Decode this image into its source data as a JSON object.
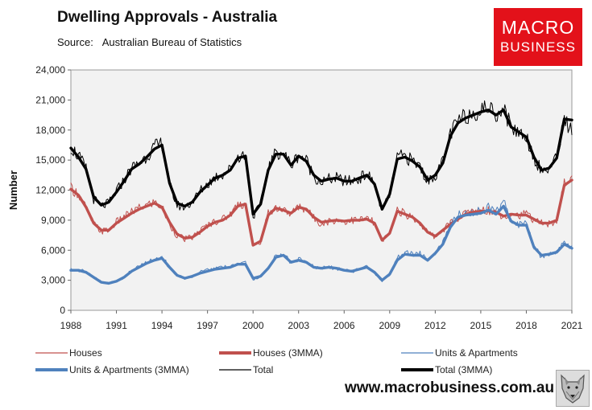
{
  "header": {
    "title": "Dwelling Approvals - Australia",
    "source_label": "Source:",
    "source_value": "Australian Bureau of Statistics"
  },
  "logo": {
    "line1": "MACRO",
    "line2": "BUSINESS"
  },
  "footer": {
    "website": "www.macrobusiness.com.au"
  },
  "icons": {
    "wolf": "wolf-head-icon"
  },
  "colors": {
    "houses": "#c0504d",
    "units": "#4f81bd",
    "total": "#000000",
    "plot_bg": "#f2f2f2",
    "logo_bg": "#e3111a"
  },
  "chart_data": {
    "type": "line",
    "title": "Dwelling Approvals - Australia",
    "xlabel": "",
    "ylabel": "Number",
    "xlim": [
      1988,
      2021
    ],
    "ylim": [
      0,
      24000
    ],
    "grid": false,
    "legend_position": "bottom",
    "x_ticks": [
      "1988",
      "1991",
      "1994",
      "1997",
      "2000",
      "2003",
      "2006",
      "2009",
      "2012",
      "2015",
      "2018",
      "2021"
    ],
    "y_ticks": [
      "0",
      "3,000",
      "6,000",
      "9,000",
      "12,000",
      "15,000",
      "18,000",
      "21,000",
      "24,000"
    ],
    "legend": [
      {
        "label": "Houses",
        "series": "Houses"
      },
      {
        "label": "Houses (3MMA)",
        "series": "Houses (3MMA)"
      },
      {
        "label": "Units & Apartments",
        "series": "Units & Apartments"
      },
      {
        "label": "Units & Apartments (3MMA)",
        "series": "Units & Apartments (3MMA)"
      },
      {
        "label": "Total",
        "series": "Total"
      },
      {
        "label": "Total (3MMA)",
        "series": "Total (3MMA)"
      }
    ],
    "x": [
      1988,
      1988.5,
      1989,
      1989.5,
      1990,
      1990.5,
      1991,
      1991.5,
      1992,
      1992.5,
      1993,
      1993.5,
      1994,
      1994.5,
      1995,
      1995.5,
      1996,
      1996.5,
      1997,
      1997.5,
      1998,
      1998.5,
      1999,
      1999.5,
      2000,
      2000.5,
      2001,
      2001.5,
      2002,
      2002.5,
      2003,
      2003.5,
      2004,
      2004.5,
      2005,
      2005.5,
      2006,
      2006.5,
      2007,
      2007.5,
      2008,
      2008.5,
      2009,
      2009.5,
      2010,
      2010.5,
      2011,
      2011.5,
      2012,
      2012.5,
      2013,
      2013.5,
      2014,
      2014.5,
      2015,
      2015.5,
      2016,
      2016.5,
      2017,
      2017.5,
      2018,
      2018.5,
      2019,
      2019.5,
      2020,
      2020.5,
      2021
    ],
    "series": [
      {
        "name": "Houses",
        "style": "thin",
        "color": "#c0504d",
        "values": [
          12200,
          11600,
          10200,
          8600,
          7900,
          8000,
          8800,
          9300,
          9800,
          10200,
          10500,
          10800,
          10300,
          8600,
          7500,
          7100,
          7300,
          7900,
          8500,
          8900,
          9100,
          9600,
          10600,
          10600,
          6300,
          6900,
          9700,
          10300,
          10000,
          9600,
          10400,
          10100,
          9200,
          8700,
          8900,
          9000,
          8900,
          9000,
          9000,
          9200,
          8700,
          6900,
          7700,
          10000,
          9600,
          9300,
          8700,
          7800,
          7300,
          8000,
          8700,
          9200,
          9700,
          9900,
          10000,
          10000,
          9800,
          9400,
          9700,
          9500,
          9600,
          9100,
          8700,
          8600,
          9000,
          12700,
          13100
        ]
      },
      {
        "name": "Houses (3MMA)",
        "style": "thick",
        "color": "#c0504d",
        "values": [
          12100,
          11500,
          10300,
          8700,
          8000,
          8000,
          8700,
          9200,
          9700,
          10100,
          10400,
          10700,
          10300,
          8800,
          7600,
          7200,
          7300,
          7800,
          8400,
          8800,
          9000,
          9500,
          10400,
          10600,
          6500,
          6900,
          9500,
          10200,
          10000,
          9700,
          10300,
          10100,
          9300,
          8800,
          8900,
          9000,
          8900,
          9000,
          9000,
          9100,
          8700,
          7000,
          7700,
          9900,
          9600,
          9300,
          8700,
          7800,
          7400,
          8000,
          8600,
          9100,
          9600,
          9800,
          9900,
          9900,
          9800,
          9400,
          9600,
          9500,
          9500,
          9100,
          8700,
          8700,
          9000,
          12500,
          13000
        ]
      },
      {
        "name": "Units & Apartments",
        "style": "thin",
        "color": "#4f81bd",
        "values": [
          4100,
          4000,
          3900,
          3300,
          2800,
          2700,
          2900,
          3300,
          4000,
          4400,
          4800,
          5100,
          5300,
          4300,
          3500,
          3200,
          3400,
          3800,
          4000,
          4200,
          4300,
          4300,
          4700,
          4700,
          3100,
          3400,
          4200,
          5500,
          5700,
          4800,
          5100,
          4900,
          4300,
          4200,
          4300,
          4200,
          4000,
          3900,
          4100,
          4400,
          3800,
          2900,
          3600,
          5200,
          5800,
          5600,
          5700,
          5000,
          5800,
          6700,
          8500,
          9500,
          9700,
          9800,
          9900,
          10300,
          9800,
          10800,
          9000,
          8500,
          8600,
          6300,
          5400,
          5600,
          5800,
          6800,
          6200
        ]
      },
      {
        "name": "Units & Apartments (3MMA)",
        "style": "thick",
        "color": "#4f81bd",
        "values": [
          4000,
          4000,
          3800,
          3300,
          2800,
          2700,
          2900,
          3300,
          3900,
          4300,
          4700,
          5000,
          5200,
          4300,
          3500,
          3200,
          3400,
          3700,
          3900,
          4100,
          4200,
          4300,
          4600,
          4600,
          3200,
          3400,
          4200,
          5300,
          5500,
          4800,
          5000,
          4800,
          4300,
          4200,
          4300,
          4200,
          4000,
          3900,
          4100,
          4300,
          3800,
          3000,
          3600,
          5000,
          5600,
          5500,
          5500,
          5000,
          5700,
          6600,
          8300,
          9300,
          9500,
          9600,
          9700,
          10000,
          9600,
          10400,
          8900,
          8500,
          8500,
          6300,
          5500,
          5600,
          5800,
          6600,
          6200
        ]
      },
      {
        "name": "Total",
        "style": "thin",
        "color": "#000000",
        "values": [
          16300,
          15400,
          14100,
          11100,
          10400,
          10700,
          11900,
          13000,
          14200,
          14700,
          15400,
          16300,
          16700,
          12500,
          10500,
          10300,
          10800,
          11900,
          12600,
          13300,
          13600,
          14100,
          15400,
          15500,
          9400,
          10600,
          14200,
          15800,
          15700,
          14500,
          15500,
          15000,
          13400,
          12800,
          13100,
          13200,
          12900,
          12900,
          13200,
          13600,
          12600,
          10000,
          11500,
          15300,
          15400,
          14900,
          14400,
          12900,
          13500,
          14800,
          17600,
          18900,
          19400,
          19700,
          20000,
          20300,
          19600,
          20200,
          18300,
          17800,
          17400,
          15300,
          13900,
          14200,
          15200,
          19200,
          17800
        ]
      },
      {
        "name": "Total (3MMA)",
        "style": "thick",
        "color": "#000000",
        "values": [
          16200,
          15300,
          14100,
          11300,
          10500,
          10800,
          11800,
          12900,
          14100,
          14600,
          15300,
          16100,
          16500,
          12700,
          10700,
          10400,
          10800,
          11800,
          12500,
          13200,
          13500,
          14000,
          15200,
          15400,
          9600,
          10600,
          14000,
          15600,
          15600,
          14500,
          15400,
          14900,
          13500,
          12900,
          13100,
          13200,
          12900,
          12900,
          13200,
          13500,
          12600,
          10100,
          11600,
          15100,
          15300,
          14900,
          14300,
          13000,
          13500,
          14700,
          17400,
          18700,
          19200,
          19500,
          19800,
          20000,
          19500,
          20000,
          18300,
          17800,
          17300,
          15300,
          14000,
          14200,
          15200,
          19100,
          19000
        ]
      }
    ]
  }
}
